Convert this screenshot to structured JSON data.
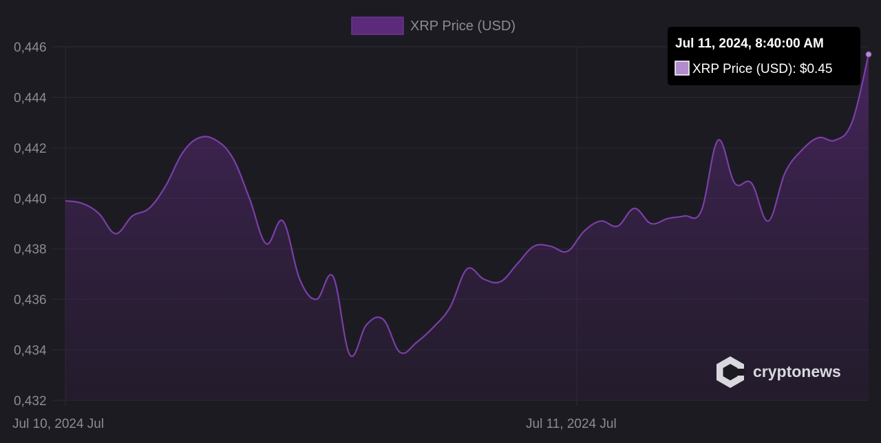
{
  "chart_data": {
    "type": "area",
    "legend": {
      "label": "XRP Price (USD)",
      "placement": "top-center"
    },
    "x_labels": [
      "Jul 10, 2024 Jul",
      "Jul 11, 2024 Jul"
    ],
    "y_ticks": [
      "0,446",
      "0,444",
      "0,442",
      "0,440",
      "0,438",
      "0,436",
      "0,434",
      "0,432"
    ],
    "ylim": [
      0.432,
      0.446
    ],
    "grid": true,
    "series": [
      {
        "name": "XRP Price (USD)",
        "color": "#7b3fa8",
        "values": [
          0.4399,
          0.4398,
          0.4394,
          0.4386,
          0.4393,
          0.4396,
          0.4405,
          0.4418,
          0.4424,
          0.4423,
          0.4416,
          0.44,
          0.4382,
          0.4391,
          0.4368,
          0.436,
          0.4369,
          0.4338,
          0.435,
          0.4352,
          0.4339,
          0.4343,
          0.4349,
          0.4357,
          0.4372,
          0.4368,
          0.4367,
          0.4374,
          0.4381,
          0.4381,
          0.4379,
          0.4387,
          0.4391,
          0.4389,
          0.4396,
          0.439,
          0.4392,
          0.4393,
          0.4395,
          0.4423,
          0.4406,
          0.4406,
          0.4391,
          0.441,
          0.4419,
          0.4424,
          0.4423,
          0.443,
          0.4457
        ]
      }
    ]
  },
  "tooltip": {
    "title": "Jul 11, 2024, 8:40:00 AM",
    "body": "XRP Price (USD): $0.45"
  },
  "branding": {
    "name": "cryptonews",
    "icon": "cryptonews-logo-icon"
  }
}
